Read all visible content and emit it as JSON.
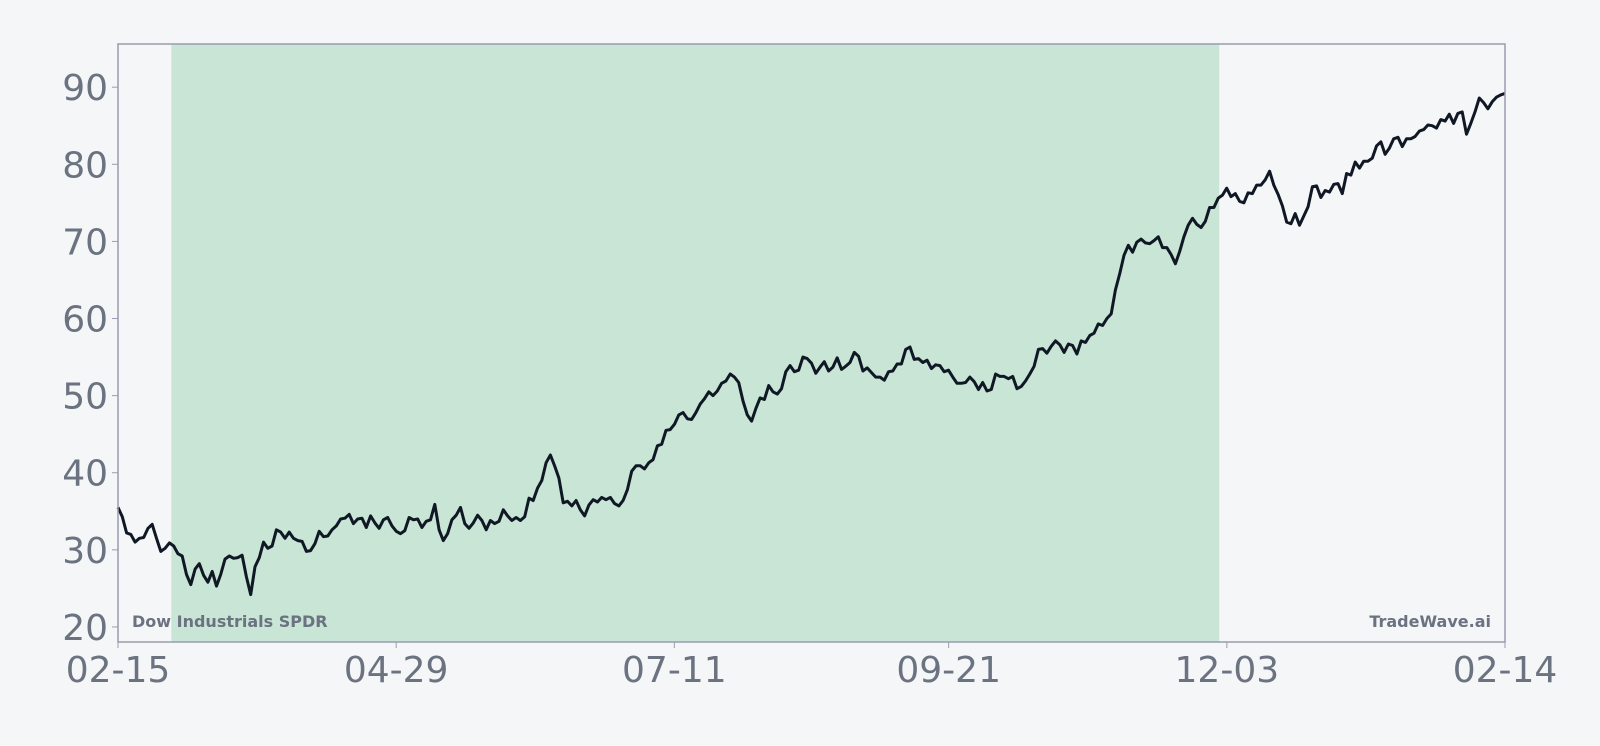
{
  "chart_data": {
    "type": "line",
    "title": "",
    "xlabel": "",
    "ylabel": "",
    "x_range": [
      "02-15",
      "02-14"
    ],
    "x_ticks": [
      "02-15",
      "04-29",
      "07-11",
      "09-21",
      "12-03",
      "02-14"
    ],
    "y_ticks": [
      20,
      30,
      40,
      50,
      60,
      70,
      80,
      90
    ],
    "ylim": [
      18.05,
      95.6
    ],
    "grid": false,
    "highlight_range": [
      "03-01",
      "12-01"
    ],
    "annotations": {
      "left": "Dow Industrials SPDR",
      "right": "TradeWave.ai"
    },
    "colors": {
      "background": "#f4f6f8",
      "highlight": "#c8e5d5",
      "line": "#0f1824",
      "axis": "#9a9cb0",
      "tick_text": "#6b7280"
    },
    "series": [
      {
        "values": [
          35.5,
          34.3,
          32.2,
          32.0,
          31.0,
          31.5,
          31.6,
          32.8,
          33.3,
          31.5,
          29.8,
          30.2,
          30.9,
          30.5,
          29.5,
          29.2,
          26.8,
          25.5,
          27.5,
          28.2,
          26.7,
          25.8,
          27.2,
          25.3,
          26.8,
          28.8,
          29.2,
          28.9,
          29.0,
          29.3,
          26.5,
          24.2,
          27.8,
          29.0,
          31.0,
          30.2,
          30.5,
          32.6,
          32.3,
          31.5,
          32.3,
          31.5,
          31.2,
          31.1,
          29.8,
          29.9,
          30.8,
          32.4,
          31.7,
          31.8,
          32.6,
          33.1,
          34.0,
          34.1,
          34.6,
          33.4,
          34.0,
          34.1,
          32.9,
          34.4,
          33.5,
          32.8,
          33.9,
          34.2,
          33.1,
          32.4,
          32.1,
          32.5,
          34.2,
          33.9,
          34.0,
          32.9,
          33.7,
          33.9,
          35.9,
          32.6,
          31.2,
          32.1,
          33.9,
          34.5,
          35.5,
          33.4,
          32.8,
          33.5,
          34.5,
          33.8,
          32.6,
          33.8,
          33.4,
          33.7,
          35.2,
          34.4,
          33.8,
          34.2,
          33.8,
          34.3,
          36.7,
          36.4,
          38.0,
          39.0,
          41.3,
          42.3,
          40.9,
          39.3,
          36.1,
          36.3,
          35.7,
          36.4,
          35.2,
          34.4,
          35.8,
          36.5,
          36.2,
          36.8,
          36.5,
          36.8,
          36.0,
          35.7,
          36.4,
          37.8,
          40.2,
          40.9,
          40.9,
          40.5,
          41.3,
          41.7,
          43.5,
          43.7,
          45.5,
          45.6,
          46.3,
          47.5,
          47.8,
          47.0,
          46.9,
          47.8,
          48.9,
          49.6,
          50.5,
          50.0,
          50.6,
          51.6,
          51.9,
          52.8,
          52.4,
          51.7,
          49.3,
          47.5,
          46.7,
          48.3,
          49.7,
          49.5,
          51.3,
          50.5,
          50.2,
          50.9,
          53.1,
          53.9,
          53.1,
          53.3,
          55.0,
          54.8,
          54.2,
          52.9,
          53.7,
          54.4,
          53.2,
          53.7,
          54.9,
          53.4,
          53.8,
          54.3,
          55.6,
          55.1,
          53.2,
          53.6,
          53.0,
          52.4,
          52.4,
          52.0,
          53.1,
          53.2,
          54.1,
          54.1,
          56.0,
          56.3,
          54.7,
          54.8,
          54.3,
          54.6,
          53.5,
          54.0,
          53.9,
          53.1,
          53.3,
          52.4,
          51.6,
          51.6,
          51.7,
          52.4,
          51.8,
          50.8,
          51.7,
          50.6,
          50.8,
          52.8,
          52.5,
          52.5,
          52.2,
          52.5,
          50.9,
          51.2,
          51.9,
          52.8,
          53.8,
          56.0,
          56.1,
          55.5,
          56.4,
          57.1,
          56.6,
          55.6,
          56.7,
          56.5,
          55.4,
          57.1,
          56.9,
          57.8,
          58.1,
          59.3,
          59.1,
          60.0,
          60.6,
          63.7,
          65.8,
          68.2,
          69.5,
          68.6,
          69.9,
          70.3,
          69.8,
          69.7,
          70.1,
          70.6,
          69.2,
          69.2,
          68.3,
          67.1,
          68.7,
          70.6,
          72.1,
          73.0,
          72.2,
          71.8,
          72.6,
          74.4,
          74.4,
          75.6,
          76.0,
          76.9,
          75.8,
          76.2,
          75.2,
          75.0,
          76.3,
          76.2,
          77.3,
          77.3,
          78.0,
          79.1,
          77.3,
          76.1,
          74.6,
          72.5,
          72.3,
          73.6,
          72.1,
          73.3,
          74.5,
          77.1,
          77.2,
          75.7,
          76.6,
          76.4,
          77.4,
          77.5,
          76.2,
          78.8,
          78.6,
          80.3,
          79.5,
          80.4,
          80.4,
          80.8,
          82.4,
          82.9,
          81.3,
          82.1,
          83.3,
          83.5,
          82.3,
          83.3,
          83.3,
          83.6,
          84.3,
          84.5,
          85.1,
          85.0,
          84.7,
          85.8,
          85.6,
          86.5,
          85.3,
          86.6,
          86.8,
          83.9,
          85.3,
          86.8,
          88.6,
          88.0,
          87.2,
          88.1,
          88.7,
          89.0,
          89.2
        ]
      }
    ]
  }
}
